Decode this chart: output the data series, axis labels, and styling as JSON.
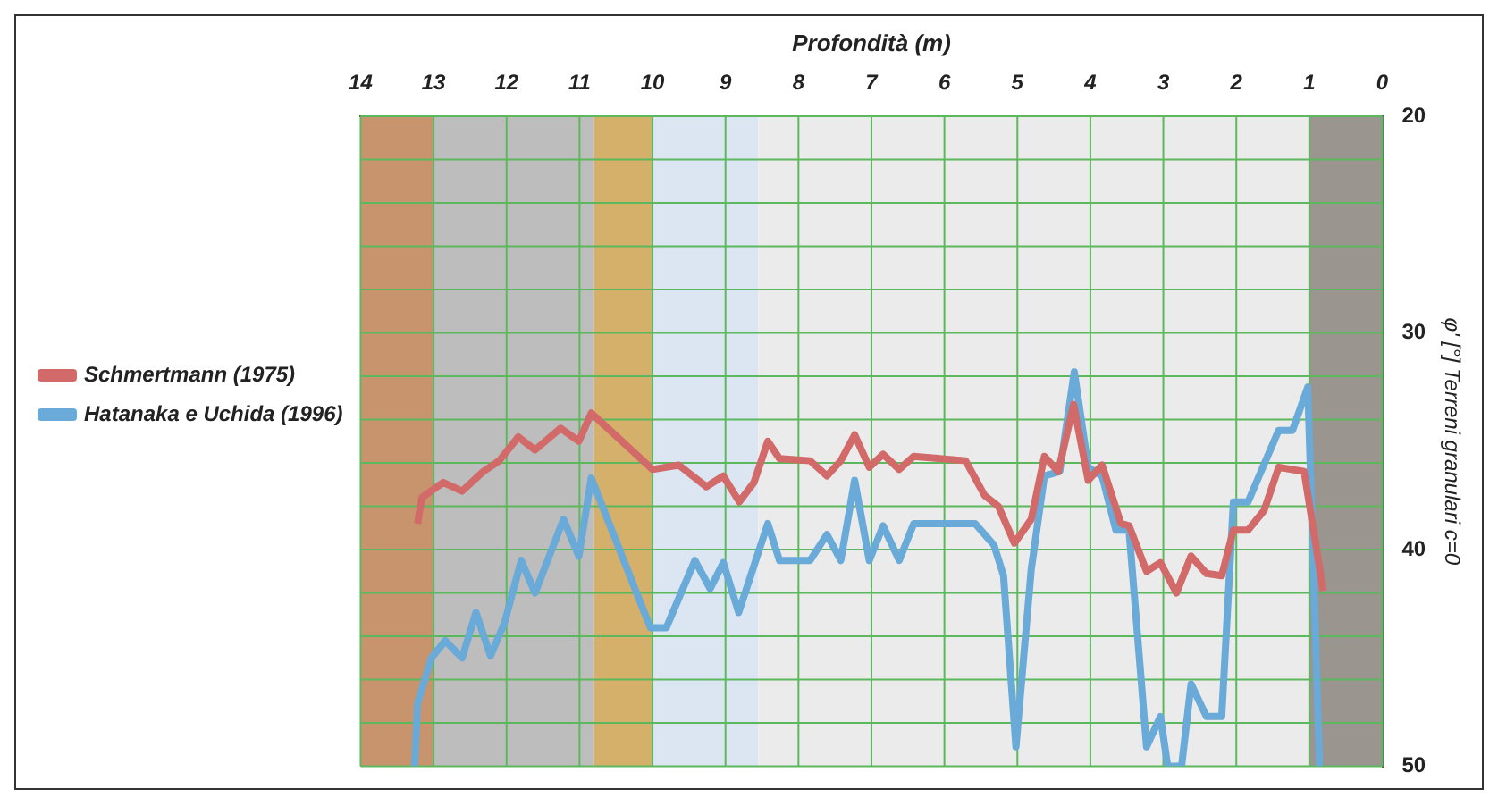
{
  "chart_data": {
    "type": "line",
    "xlabel": "Profondità (m)",
    "ylabel": "φ' [°] Terreni granulari c=0",
    "xlim": [
      14,
      0
    ],
    "xticks": [
      14,
      13,
      12,
      11,
      10,
      9,
      8,
      7,
      6,
      5,
      4,
      3,
      2,
      1,
      0
    ],
    "ylim": [
      50,
      20
    ],
    "yticks": [
      20,
      {
        "value": 22,
        "label": null
      },
      {
        "value": 24,
        "label": null
      },
      {
        "value": 26,
        "label": null
      },
      {
        "value": 28,
        "label": null
      },
      30,
      {
        "value": 32,
        "label": null
      },
      {
        "value": 34,
        "label": null
      },
      {
        "value": 36,
        "label": null
      },
      {
        "value": 38,
        "label": null
      },
      40,
      {
        "value": 42,
        "label": null
      },
      {
        "value": 44,
        "label": null
      },
      {
        "value": 46,
        "label": null
      },
      {
        "value": 48,
        "label": null
      },
      50
    ],
    "grid": true,
    "legend": "left",
    "marker": "none",
    "line_style": "solid",
    "bands": [
      {
        "axis": "x",
        "from": 14,
        "to": 13,
        "color": "#c8946e"
      },
      {
        "axis": "x",
        "from": 13,
        "to": 10.8,
        "color": "#bdbdbd"
      },
      {
        "axis": "x",
        "from": 10.8,
        "to": 10,
        "color": "#d4b06a"
      },
      {
        "axis": "x",
        "from": 10,
        "to": 8.55,
        "color": "#dbe6f2"
      },
      {
        "axis": "x",
        "from": 8.55,
        "to": 1,
        "color": "#ebebeb"
      },
      {
        "axis": "x",
        "from": 1,
        "to": 0,
        "color": "#9a958e"
      }
    ],
    "series": [
      {
        "name": "Schmertmann (1975)",
        "color": "#d26a6a",
        "x": [
          13.22,
          13.16,
          12.87,
          12.61,
          12.32,
          12.1,
          11.84,
          11.61,
          11.26,
          11.01,
          10.84,
          10.0,
          9.64,
          9.26,
          9.03,
          8.81,
          8.61,
          8.42,
          8.26,
          7.84,
          7.61,
          7.42,
          7.23,
          7.03,
          6.84,
          6.62,
          6.42,
          5.71,
          5.45,
          5.26,
          5.04,
          4.81,
          4.63,
          4.44,
          4.23,
          4.03,
          3.84,
          3.58,
          3.47,
          3.23,
          3.04,
          2.82,
          2.62,
          2.41,
          2.2,
          2.04,
          1.84,
          1.62,
          1.42,
          1.07,
          0.81
        ],
        "values": [
          38.8,
          37.6,
          36.9,
          37.3,
          36.4,
          35.9,
          34.8,
          35.4,
          34.4,
          35.0,
          33.7,
          36.3,
          36.1,
          37.1,
          36.6,
          37.8,
          36.9,
          35.0,
          35.8,
          35.9,
          36.6,
          35.9,
          34.7,
          36.2,
          35.6,
          36.3,
          35.7,
          35.9,
          37.5,
          38.0,
          39.7,
          38.6,
          35.7,
          36.4,
          33.3,
          36.8,
          36.1,
          38.8,
          38.9,
          41.0,
          40.6,
          42.0,
          40.3,
          41.1,
          41.2,
          39.1,
          39.1,
          38.2,
          36.2,
          36.4,
          41.9
        ]
      },
      {
        "name": "Hatanaka e Uchida (1996)",
        "color": "#6aaad8",
        "x": [
          13.26,
          13.22,
          13.03,
          12.84,
          12.61,
          12.42,
          12.22,
          12.03,
          11.8,
          11.61,
          11.22,
          11.01,
          10.84,
          10.03,
          9.81,
          9.42,
          9.21,
          9.03,
          8.82,
          8.42,
          8.26,
          7.84,
          7.61,
          7.42,
          7.23,
          7.03,
          6.84,
          6.62,
          6.42,
          5.58,
          5.32,
          5.19,
          5.02,
          4.81,
          4.63,
          4.42,
          4.22,
          4.03,
          3.84,
          3.65,
          3.47,
          3.23,
          3.04,
          2.94,
          2.75,
          2.62,
          2.41,
          2.2,
          2.04,
          1.84,
          1.42,
          1.23,
          1.02,
          0.86
        ],
        "values": [
          50,
          47.1,
          45.0,
          44.2,
          45.0,
          42.9,
          44.9,
          43.4,
          40.5,
          42.0,
          38.6,
          40.3,
          36.7,
          43.6,
          43.6,
          40.5,
          41.8,
          40.6,
          42.9,
          38.8,
          40.5,
          40.5,
          39.3,
          40.5,
          36.8,
          40.5,
          38.9,
          40.5,
          38.8,
          38.8,
          39.8,
          41.2,
          49.1,
          40.9,
          36.6,
          36.4,
          31.8,
          36.2,
          36.6,
          39.1,
          39.1,
          49.1,
          47.7,
          50,
          50,
          46.2,
          47.7,
          47.7,
          37.8,
          37.8,
          34.5,
          34.5,
          32.5,
          50
        ]
      }
    ]
  }
}
